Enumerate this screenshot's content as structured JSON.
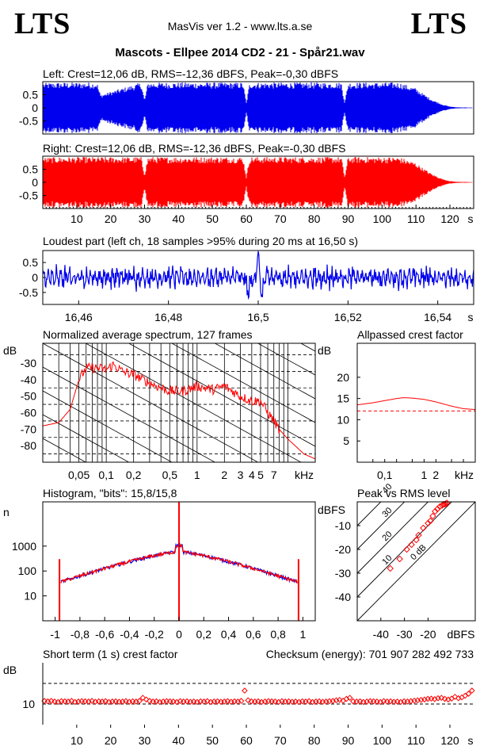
{
  "header": {
    "logo_left": "LTS",
    "logo_right": "LTS",
    "app_title": "MasVis ver 1.2 - www.lts.a.se",
    "file_title": "Mascots - Ellpee 2014 CD2 - 21 - Spår21.wav"
  },
  "colors": {
    "left": "#0000ee",
    "right": "#ff0000",
    "axis": "#000000"
  },
  "chart_data": [
    {
      "id": "left_waveform",
      "type": "area",
      "title": "Left: Crest=12,06 dB, RMS=-12,36 dBFS, Peak=-0,30 dBFS",
      "channel": "left",
      "ytick_labels": [
        "0.5",
        "0",
        "-0.5"
      ],
      "y_ticks": [
        0.5,
        0,
        -0.5
      ],
      "ylim": [
        -1,
        1
      ],
      "xlim": [
        0,
        127
      ],
      "envelope_time": [
        0,
        5,
        16,
        17,
        29,
        30,
        31,
        59,
        60,
        61,
        88,
        89,
        90,
        105,
        110,
        112,
        115,
        118,
        120,
        122,
        127
      ],
      "envelope_amp": [
        0.95,
        0.97,
        0.97,
        0.5,
        0.97,
        0.3,
        0.97,
        0.97,
        0.2,
        0.97,
        0.97,
        0.2,
        0.97,
        0.97,
        0.75,
        0.55,
        0.3,
        0.12,
        0.05,
        0.02,
        0.01
      ]
    },
    {
      "id": "right_waveform",
      "type": "area",
      "title": "Right: Crest=12,06 dB, RMS=-12,36 dBFS, Peak=-0,30 dBFS",
      "channel": "right",
      "ytick_labels": [
        "0.5",
        "0",
        "-0.5"
      ],
      "y_ticks": [
        0.5,
        0,
        -0.5
      ],
      "ylim": [
        -1,
        1
      ],
      "xlim": [
        0,
        127
      ],
      "x_ticks": [
        10,
        20,
        30,
        40,
        50,
        60,
        70,
        80,
        90,
        100,
        110,
        120
      ],
      "xtick_labels": [
        "10",
        "20",
        "30",
        "40",
        "50",
        "60",
        "70",
        "80",
        "90",
        "100",
        "110",
        "120"
      ],
      "xunit": "s",
      "envelope_time": [
        0,
        5,
        29,
        30,
        31,
        59,
        60,
        61,
        88,
        89,
        90,
        105,
        110,
        112,
        115,
        118,
        120,
        122,
        127
      ],
      "envelope_amp": [
        0.95,
        0.97,
        0.97,
        0.3,
        0.97,
        0.97,
        0.2,
        0.97,
        0.97,
        0.2,
        0.97,
        0.97,
        0.75,
        0.55,
        0.3,
        0.12,
        0.05,
        0.02,
        0.01
      ]
    },
    {
      "id": "loudest_part",
      "type": "line",
      "title": "Loudest part (left  ch, 18 samples >95% during 20 ms at 16,50 s)",
      "ytick_labels": [
        "0.5",
        "0",
        "-0.5"
      ],
      "y_ticks": [
        0.5,
        0,
        -0.5
      ],
      "ylim": [
        -0.9,
        0.9
      ],
      "xlim": [
        16.452,
        16.548
      ],
      "x_ticks": [
        16.46,
        16.48,
        16.5,
        16.52,
        16.54
      ],
      "xtick_labels": [
        "16,46",
        "16,48",
        "16,5",
        "16,52",
        "16,54"
      ],
      "xunit": "s",
      "peak_at": 16.5
    },
    {
      "id": "avg_spectrum",
      "type": "line",
      "title": "Normalized average spectrum, 127 frames",
      "ylabel": "dB",
      "ytick_labels": [
        "-30",
        "-40",
        "-50",
        "-60",
        "-70",
        "-80"
      ],
      "y_ticks": [
        -30,
        -40,
        -50,
        -60,
        -70,
        -80
      ],
      "ylim": [
        -90,
        -18
      ],
      "xscale": "log",
      "xlim": [
        0.02,
        20
      ],
      "xtick_labels": [
        "0,05",
        "0,1",
        "0,2",
        "0,5",
        "1",
        "2",
        "3",
        "4",
        "5",
        "7"
      ],
      "x_ticks": [
        0.05,
        0.1,
        0.2,
        0.5,
        1,
        2,
        3,
        4,
        5,
        7
      ],
      "xunit": "kHz",
      "freq_khz": [
        0.02,
        0.03,
        0.04,
        0.05,
        0.06,
        0.08,
        0.1,
        0.12,
        0.15,
        0.2,
        0.3,
        0.4,
        0.5,
        0.7,
        1,
        1.5,
        2,
        3,
        4,
        5,
        6,
        7,
        8,
        10,
        12,
        15,
        20
      ],
      "level_db": [
        -68,
        -66,
        -58,
        -40,
        -33,
        -33,
        -34,
        -31,
        -35,
        -37,
        -42,
        -45,
        -47,
        -47,
        -44,
        -46,
        -44,
        -50,
        -53,
        -53,
        -60,
        -65,
        -70,
        -76,
        -80,
        -85,
        -88
      ]
    },
    {
      "id": "allpassed_crest",
      "type": "line",
      "title": "Allpassed crest factor",
      "ylabel": "dB",
      "ytick_labels": [
        "20",
        "15",
        "10",
        "5"
      ],
      "y_ticks": [
        20,
        15,
        10,
        5
      ],
      "ylim": [
        0,
        28
      ],
      "xscale": "log",
      "xlim": [
        0.02,
        20
      ],
      "xtick_labels": [
        "0,1",
        "1",
        "2"
      ],
      "x_ticks": [
        0.1,
        1,
        2
      ],
      "xunit": "kHz",
      "freq_khz": [
        0.02,
        0.05,
        0.1,
        0.2,
        0.3,
        0.5,
        1,
        2,
        5,
        10,
        20
      ],
      "crest_db": [
        13.5,
        14.0,
        14.5,
        15.0,
        15.2,
        15.1,
        14.8,
        14.2,
        13.2,
        12.6,
        12.4
      ],
      "reference_db": 12.06
    },
    {
      "id": "histogram",
      "type": "bar",
      "title": "Histogram, \"bits\": 15,8/15,8",
      "ylabel": "n",
      "yscale": "log",
      "ytick_labels": [
        "1000",
        "100",
        "10"
      ],
      "y_ticks": [
        1000,
        100,
        10
      ],
      "ylim": [
        1,
        60000
      ],
      "xlim": [
        -1.1,
        1.1
      ],
      "x_ticks": [
        -1,
        -0.8,
        -0.6,
        -0.4,
        -0.2,
        0,
        0.2,
        0.4,
        0.6,
        0.8,
        1
      ],
      "xtick_labels": [
        "-1",
        "-0,8",
        "-0,6",
        "-0,4",
        "-0,2",
        "0",
        "0,2",
        "0,4",
        "0,6",
        "0,8",
        "1"
      ],
      "center_count": 600,
      "edge_count": 300,
      "spike_count": 60000
    },
    {
      "id": "peak_vs_rms",
      "type": "scatter",
      "title": "Peak vs RMS level",
      "ylabel": "dBFS",
      "xlabel": "dBFS",
      "ytick_labels": [
        "-10",
        "-20",
        "-30",
        "-40"
      ],
      "y_ticks": [
        -10,
        -20,
        -30,
        -40
      ],
      "x_ticks": [
        -40,
        -30,
        -20
      ],
      "xtick_labels": [
        "-40",
        "-30",
        "-20"
      ],
      "xlim": [
        -50,
        0
      ],
      "ylim": [
        -50,
        0
      ],
      "crest_lines_db": [
        0,
        10,
        20,
        30,
        40
      ],
      "crest_labels": [
        "0 dB",
        "10",
        "20",
        "30",
        "40"
      ],
      "rms": [
        -36,
        -32,
        -29,
        -27,
        -25,
        -24,
        -22,
        -20,
        -19,
        -18,
        -17,
        -16,
        -15,
        -14,
        -13.5,
        -13,
        -12.5,
        -12
      ],
      "peak": [
        -28,
        -24,
        -20,
        -18,
        -16,
        -14,
        -11,
        -9,
        -8,
        -6,
        -4,
        -3,
        -2,
        -1.5,
        -1,
        -1,
        -0.8,
        -0.5
      ]
    },
    {
      "id": "short_term_crest",
      "type": "scatter",
      "title": "Short term (1 s) crest factor",
      "ylabel": "dB",
      "ytick_labels": [
        "10"
      ],
      "y_ticks": [
        10
      ],
      "ylim": [
        0,
        30
      ],
      "xlim": [
        0,
        127
      ],
      "x_ticks": [
        10,
        20,
        30,
        40,
        50,
        60,
        70,
        80,
        90,
        100,
        110,
        120
      ],
      "xtick_labels": [
        "10",
        "20",
        "30",
        "40",
        "50",
        "60",
        "70",
        "80",
        "90",
        "100",
        "110",
        "120"
      ],
      "xunit": "s",
      "reference_lines_db": [
        10,
        20
      ],
      "value_db": [
        11.5,
        11.3,
        11.5,
        11.2,
        11.0,
        11.4,
        11.3,
        11.2,
        11.5,
        11.0,
        11.2,
        11.4,
        11.3,
        11.2,
        11.5,
        11.1,
        11.3,
        11.2,
        11.4,
        11.0,
        11.2,
        11.3,
        11.1,
        11.2,
        11.4,
        11.1,
        11.3,
        11.2,
        11.5,
        13.0,
        12.2,
        11.5,
        11.2,
        11.3,
        11.0,
        11.2,
        11.4,
        11.3,
        11.2,
        11.0,
        11.4,
        11.2,
        11.3,
        11.1,
        11.2,
        11.0,
        11.3,
        11.2,
        11.4,
        11.0,
        11.2,
        11.3,
        11.1,
        11.2,
        11.4,
        11.1,
        11.3,
        11.2,
        11.5,
        16.5,
        11.8,
        11.3,
        11.2,
        11.3,
        11.0,
        11.2,
        11.4,
        11.3,
        11.2,
        11.0,
        11.4,
        11.2,
        11.3,
        11.1,
        11.2,
        11.0,
        11.3,
        11.2,
        11.4,
        11.0,
        11.2,
        11.3,
        11.1,
        11.2,
        11.4,
        11.5,
        11.8,
        12.0,
        11.6,
        12.5,
        13.0,
        11.3,
        11.2,
        11.3,
        11.0,
        11.2,
        11.4,
        11.3,
        11.2,
        11.0,
        11.4,
        11.2,
        11.3,
        11.1,
        11.2,
        11.0,
        11.3,
        11.2,
        11.4,
        11.6,
        11.8,
        12.0,
        12.2,
        12.5,
        12.6,
        12.4,
        12.8,
        13.0,
        12.5,
        12.2,
        12.6,
        13.5,
        12.8,
        13.2,
        14.0,
        15.0,
        16.5
      ]
    }
  ],
  "checksum": {
    "label": "Checksum (energy):",
    "value": "701 907 282 492 733"
  }
}
